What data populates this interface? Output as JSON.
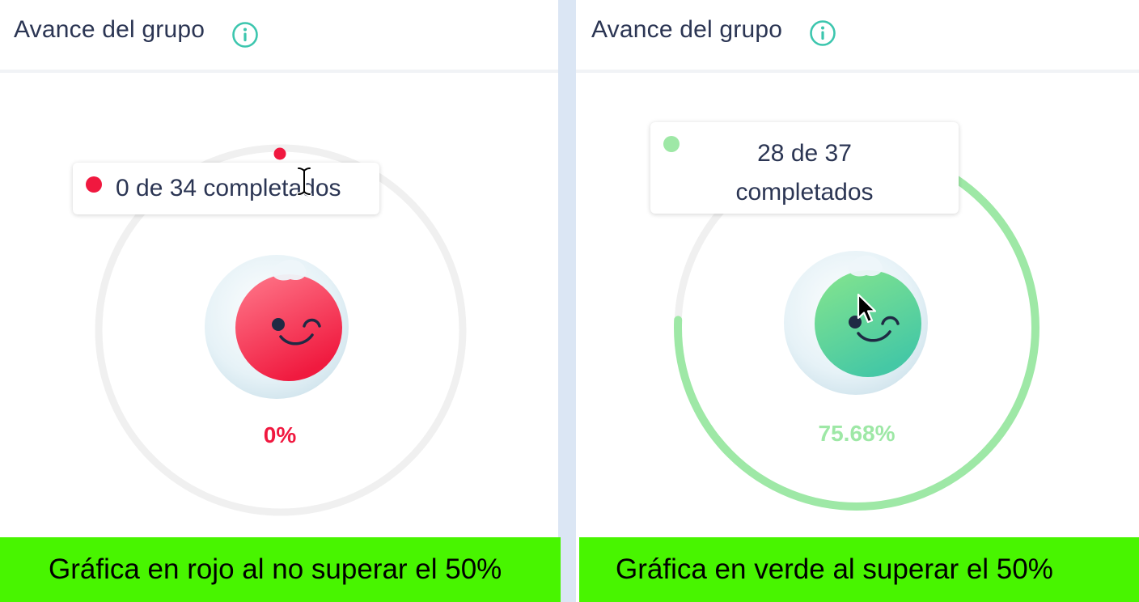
{
  "colors": {
    "left_accent": "#f0183f",
    "right_accent": "#9ee8a6",
    "caption_bg": "#48f500",
    "divider": "#dbe6f4",
    "info_icon": "#3cc6ae",
    "track": "#f0f0f0"
  },
  "left_panel": {
    "title": "Avance del grupo",
    "info_icon": "info-circle-icon",
    "progress": {
      "completed": 0,
      "total": 34,
      "fraction": 0.0
    },
    "tooltip_text": "0 de 34 completados",
    "percent_label": "0%",
    "mascot_icon": "winking-face-icon",
    "cursor_icon": "text-ibeam-cursor-icon",
    "caption": "Gráfica en rojo al no superar el 50%"
  },
  "right_panel": {
    "title": "Avance del grupo",
    "info_icon": "info-circle-icon",
    "progress": {
      "completed": 28,
      "total": 37,
      "fraction": 0.7568
    },
    "tooltip_line1": "28 de 37",
    "tooltip_line2": "completados",
    "percent_label": "75.68%",
    "mascot_icon": "winking-face-icon",
    "cursor_icon": "arrow-pointer-icon",
    "caption": "Gráfica en verde al superar el 50%"
  }
}
